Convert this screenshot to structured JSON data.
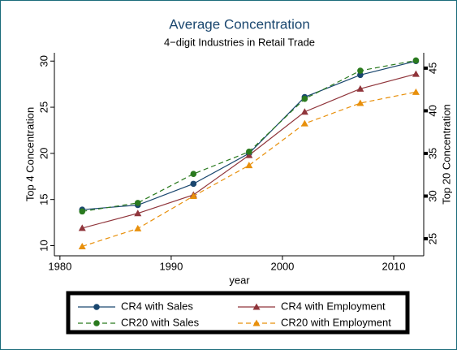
{
  "chart_data": {
    "type": "line",
    "title": "Average Concentration",
    "subtitle": "4−digit Industries in Retail Trade",
    "x_label": "year",
    "y_label": "Top 4 Concentration",
    "y2_label": "Top 20 Concentration",
    "x": [
      1982,
      1987,
      1992,
      1997,
      2002,
      2007,
      2012
    ],
    "xlim": [
      1979.5,
      2012.7
    ],
    "xticks": [
      1980,
      1990,
      2000,
      2010
    ],
    "ylim": [
      8.9,
      30.9
    ],
    "yticks": [
      10,
      15,
      20,
      25,
      30
    ],
    "y2lim": [
      23,
      46.8
    ],
    "y2ticks": [
      25,
      30,
      35,
      40,
      45
    ],
    "legend_position": "bottom",
    "series": [
      {
        "name": "CR4 with Sales",
        "color": "#1a476f",
        "marker": "circle",
        "dash": "solid",
        "axis": "y",
        "values": [
          13.9,
          14.4,
          16.7,
          20.0,
          26.1,
          28.5,
          30.0
        ]
      },
      {
        "name": "CR4 with Employment",
        "color": "#90353b",
        "marker": "triangle",
        "dash": "solid",
        "axis": "y",
        "values": [
          11.9,
          13.5,
          15.5,
          19.8,
          24.5,
          27.0,
          28.6
        ]
      },
      {
        "name": "CR20 with Sales",
        "color": "#2a7a1e",
        "marker": "circle",
        "dash": "dashed",
        "axis": "y2",
        "values": [
          28.2,
          29.2,
          32.6,
          35.2,
          41.4,
          44.7,
          45.9
        ]
      },
      {
        "name": "CR20 with Employment",
        "color": "#e8900c",
        "marker": "triangle",
        "dash": "dashed",
        "axis": "y2",
        "values": [
          24.1,
          26.2,
          30.0,
          33.6,
          38.5,
          40.9,
          42.2
        ]
      }
    ]
  }
}
